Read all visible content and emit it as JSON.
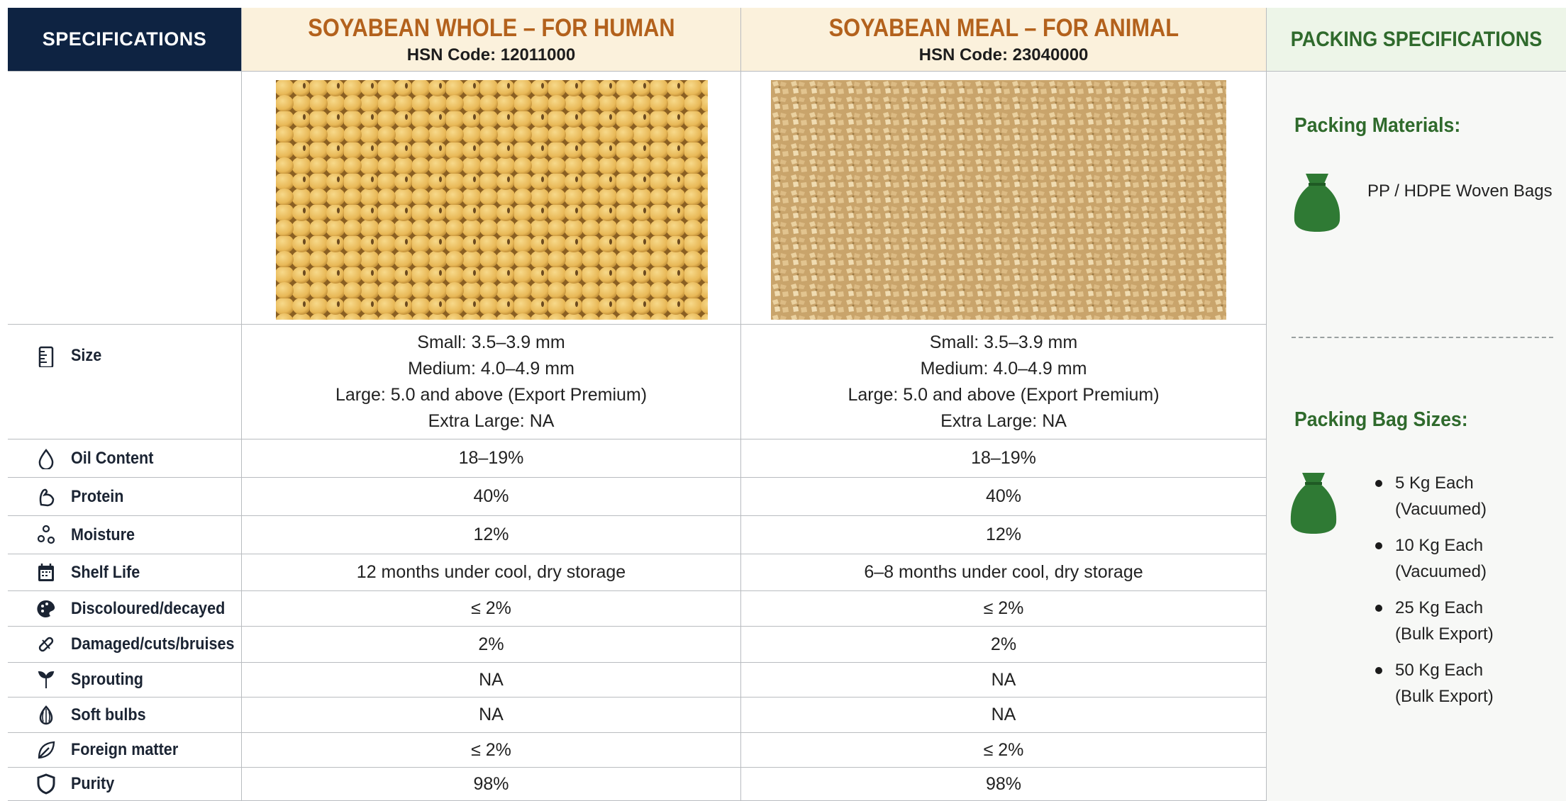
{
  "header": {
    "specifications": "SPECIFICATIONS",
    "products": [
      {
        "title": "SOYABEAN WHOLE – FOR HUMAN",
        "hsn": "HSN Code: 12011000"
      },
      {
        "title": "SOYABEAN MEAL – FOR ANIMAL",
        "hsn": "HSN Code: 23040000"
      }
    ],
    "packing_title": "PACKING SPECIFICATIONS"
  },
  "rows": [
    {
      "label": "Size",
      "values": [
        [
          "Small: 3.5–3.9 mm",
          "Medium: 4.0–4.9 mm",
          "Large: 5.0 and above (Export Premium)",
          "Extra Large: NA"
        ],
        [
          "Small: 3.5–3.9 mm",
          "Medium: 4.0–4.9 mm",
          "Large: 5.0 and above (Export Premium)",
          "Extra Large: NA"
        ]
      ]
    },
    {
      "label": "Oil Content",
      "values": [
        "18–19%",
        "18–19%"
      ]
    },
    {
      "label": "Protein",
      "values": [
        "40%",
        "40%"
      ]
    },
    {
      "label": "Moisture",
      "values": [
        "12%",
        "12%"
      ]
    },
    {
      "label": "Shelf Life",
      "values": [
        "12 months under cool, dry storage",
        "6–8 months under cool, dry storage"
      ]
    },
    {
      "label": "Discoloured/decayed",
      "values": [
        "≤ 2%",
        "≤ 2%"
      ]
    },
    {
      "label": "Damaged/cuts/bruises",
      "values": [
        "2%",
        "2%"
      ]
    },
    {
      "label": "Sprouting",
      "values": [
        "NA",
        "NA"
      ]
    },
    {
      "label": "Soft bulbs",
      "values": [
        "NA",
        "NA"
      ]
    },
    {
      "label": "Foreign matter",
      "values": [
        "≤ 2%",
        "≤ 2%"
      ]
    },
    {
      "label": "Purity",
      "values": [
        "98%",
        "98%"
      ]
    }
  ],
  "packing": {
    "materials_title": "Packing Materials:",
    "materials": "PP / HDPE Woven Bags",
    "sizes_title": "Packing Bag Sizes:",
    "sizes": [
      [
        "5 Kg Each",
        "(Vacuumed)"
      ],
      [
        "10 Kg Each",
        "(Vacuumed)"
      ],
      [
        "25 Kg Each",
        "(Bulk Export)"
      ],
      [
        "50 Kg Each",
        "(Bulk Export)"
      ]
    ]
  }
}
